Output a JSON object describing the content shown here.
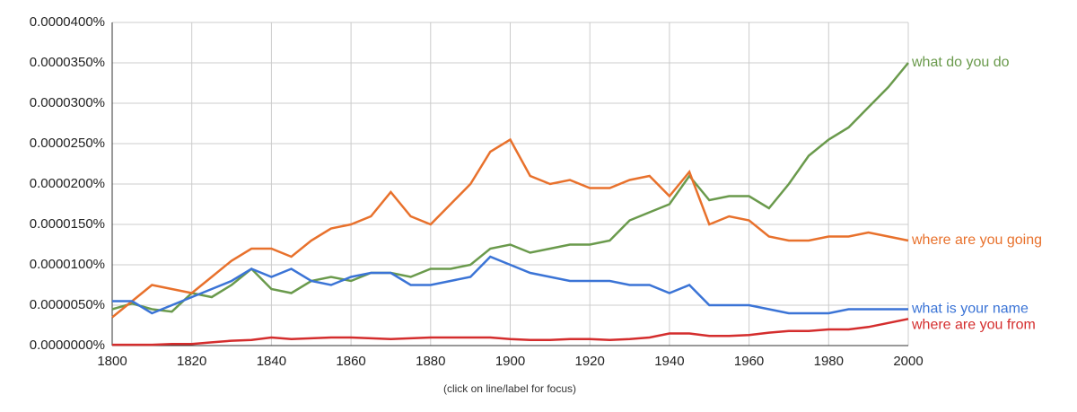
{
  "chart_data": {
    "type": "line",
    "note": "(click on line/label for focus)",
    "x": [
      1800,
      1805,
      1810,
      1815,
      1820,
      1825,
      1830,
      1835,
      1840,
      1845,
      1850,
      1855,
      1860,
      1865,
      1870,
      1875,
      1880,
      1885,
      1890,
      1895,
      1900,
      1905,
      1910,
      1915,
      1920,
      1925,
      1930,
      1935,
      1940,
      1945,
      1950,
      1955,
      1960,
      1965,
      1970,
      1975,
      1980,
      1985,
      1990,
      1995,
      2000
    ],
    "xlim": [
      1800,
      2000
    ],
    "xticks": [
      1800,
      1820,
      1840,
      1860,
      1880,
      1900,
      1920,
      1940,
      1960,
      1980,
      2000
    ],
    "ylim": [
      0,
      4e-05
    ],
    "yticks": [
      {
        "value": 0,
        "label": "0.0000000%"
      },
      {
        "value": 5e-06,
        "label": "0.0000050%"
      },
      {
        "value": 1e-05,
        "label": "0.0000100%"
      },
      {
        "value": 1.5e-05,
        "label": "0.0000150%"
      },
      {
        "value": 2e-05,
        "label": "0.0000200%"
      },
      {
        "value": 2.5e-05,
        "label": "0.0000250%"
      },
      {
        "value": 3e-05,
        "label": "0.0000300%"
      },
      {
        "value": 3.5e-05,
        "label": "0.0000350%"
      },
      {
        "value": 4e-05,
        "label": "0.0000400%"
      }
    ],
    "grid": true,
    "series": [
      {
        "name": "what do you do",
        "color": "#6a9a4c",
        "values": [
          4.5e-06,
          5.2e-06,
          4.5e-06,
          4.2e-06,
          6.5e-06,
          6e-06,
          7.5e-06,
          9.5e-06,
          7e-06,
          6.5e-06,
          8e-06,
          8.5e-06,
          8e-06,
          9e-06,
          9e-06,
          8.5e-06,
          9.5e-06,
          9.5e-06,
          1e-05,
          1.2e-05,
          1.25e-05,
          1.15e-05,
          1.2e-05,
          1.25e-05,
          1.25e-05,
          1.3e-05,
          1.55e-05,
          1.65e-05,
          1.75e-05,
          2.1e-05,
          1.8e-05,
          1.85e-05,
          1.85e-05,
          1.7e-05,
          2e-05,
          2.35e-05,
          2.55e-05,
          2.7e-05,
          2.95e-05,
          3.2e-05,
          3.5e-05
        ]
      },
      {
        "name": "where are you going",
        "color": "#e8712c",
        "values": [
          3.5e-06,
          5.5e-06,
          7.5e-06,
          7e-06,
          6.5e-06,
          8.5e-06,
          1.05e-05,
          1.2e-05,
          1.2e-05,
          1.1e-05,
          1.3e-05,
          1.45e-05,
          1.5e-05,
          1.6e-05,
          1.9e-05,
          1.6e-05,
          1.5e-05,
          1.75e-05,
          2e-05,
          2.4e-05,
          2.55e-05,
          2.1e-05,
          2e-05,
          2.05e-05,
          1.95e-05,
          1.95e-05,
          2.05e-05,
          2.1e-05,
          1.85e-05,
          2.15e-05,
          1.5e-05,
          1.6e-05,
          1.55e-05,
          1.35e-05,
          1.3e-05,
          1.3e-05,
          1.35e-05,
          1.35e-05,
          1.4e-05,
          1.35e-05,
          1.3e-05
        ]
      },
      {
        "name": "what is your name",
        "color": "#3b74d6",
        "values": [
          5.5e-06,
          5.5e-06,
          4e-06,
          5e-06,
          6e-06,
          7e-06,
          8e-06,
          9.5e-06,
          8.5e-06,
          9.5e-06,
          8e-06,
          7.5e-06,
          8.5e-06,
          9e-06,
          9e-06,
          7.5e-06,
          7.5e-06,
          8e-06,
          8.5e-06,
          1.1e-05,
          1e-05,
          9e-06,
          8.5e-06,
          8e-06,
          8e-06,
          8e-06,
          7.5e-06,
          7.5e-06,
          6.5e-06,
          7.5e-06,
          5e-06,
          5e-06,
          5e-06,
          4.5e-06,
          4e-06,
          4e-06,
          4e-06,
          4.5e-06,
          4.5e-06,
          4.5e-06,
          4.5e-06
        ]
      },
      {
        "name": "where are you from",
        "color": "#d42d2d",
        "values": [
          1e-07,
          1e-07,
          1e-07,
          2e-07,
          2e-07,
          4e-07,
          6e-07,
          7e-07,
          1e-06,
          8e-07,
          9e-07,
          1e-06,
          1e-06,
          9e-07,
          8e-07,
          9e-07,
          1e-06,
          1e-06,
          1e-06,
          1e-06,
          8e-07,
          7e-07,
          7e-07,
          8e-07,
          8e-07,
          7e-07,
          8e-07,
          1e-06,
          1.5e-06,
          1.5e-06,
          1.2e-06,
          1.2e-06,
          1.3e-06,
          1.6e-06,
          1.8e-06,
          1.8e-06,
          2e-06,
          2e-06,
          2.3e-06,
          2.8e-06,
          3.3e-06
        ]
      }
    ]
  }
}
